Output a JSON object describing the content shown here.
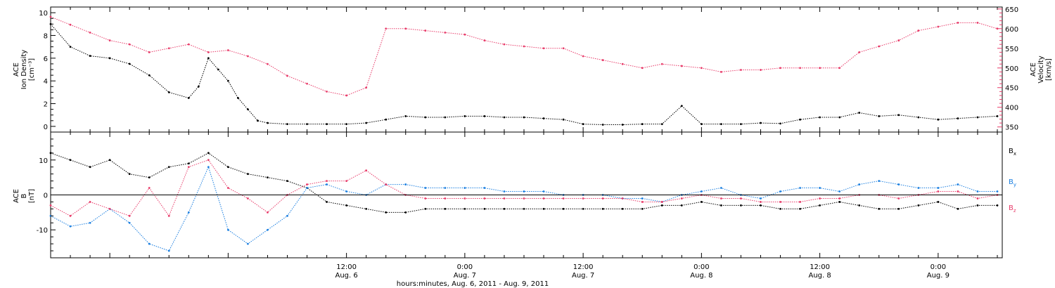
{
  "chart_data": [
    {
      "type": "scatter",
      "panel": "top",
      "xlabel": "hours:minutes, Aug. 6, 2011 - Aug. 9, 2011",
      "x_range_hours": [
        -18,
        78.5
      ],
      "y_left": {
        "label_lines": [
          "ACE",
          "Ion Density",
          "[cm⁻³]"
        ],
        "range": [
          -0.5,
          10.5
        ],
        "ticks": [
          0,
          2,
          4,
          6,
          8,
          10
        ]
      },
      "y_right": {
        "label_lines": [
          "ACE",
          "Velocity",
          "[km/s]"
        ],
        "range": [
          337,
          655
        ],
        "ticks": [
          350,
          400,
          450,
          500,
          550,
          600,
          650
        ],
        "color": "#e83c6a"
      },
      "series": [
        {
          "name": "Ion Density",
          "axis": "left",
          "color": "#000000",
          "x": [
            -18,
            -16,
            -14,
            -12,
            -10,
            -8,
            -6,
            -4,
            -3,
            -2,
            -1,
            0,
            1,
            2,
            3,
            4,
            6,
            8,
            10,
            12,
            14,
            16,
            18,
            20,
            22,
            24,
            26,
            28,
            30,
            32,
            34,
            36,
            38,
            40,
            42,
            44,
            46,
            48,
            50,
            52,
            54,
            56,
            58,
            60,
            62,
            64,
            66,
            68,
            70,
            72,
            74,
            76,
            78
          ],
          "y": [
            9.0,
            7.0,
            6.2,
            6.0,
            5.5,
            4.5,
            3.0,
            2.5,
            3.5,
            6.0,
            5.0,
            4.0,
            2.5,
            1.5,
            0.5,
            0.3,
            0.2,
            0.2,
            0.2,
            0.2,
            0.3,
            0.6,
            0.9,
            0.8,
            0.8,
            0.9,
            0.9,
            0.8,
            0.8,
            0.7,
            0.6,
            0.2,
            0.15,
            0.15,
            0.2,
            0.2,
            1.8,
            0.2,
            0.2,
            0.2,
            0.3,
            0.25,
            0.6,
            0.8,
            0.8,
            1.2,
            0.9,
            1.0,
            0.8,
            0.6,
            0.7,
            0.8,
            0.9
          ]
        },
        {
          "name": "Velocity",
          "axis": "right",
          "color": "#e83c6a",
          "x": [
            -18,
            -16,
            -14,
            -12,
            -10,
            -8,
            -6,
            -4,
            -2,
            0,
            2,
            4,
            6,
            8,
            10,
            12,
            14,
            16,
            18,
            20,
            22,
            24,
            26,
            28,
            30,
            32,
            34,
            36,
            38,
            40,
            42,
            44,
            46,
            48,
            50,
            52,
            54,
            56,
            58,
            60,
            62,
            64,
            66,
            68,
            70,
            72,
            74,
            76,
            78
          ],
          "y": [
            630,
            610,
            590,
            570,
            560,
            540,
            550,
            560,
            540,
            545,
            530,
            510,
            480,
            460,
            440,
            430,
            450,
            600,
            600,
            595,
            590,
            585,
            570,
            560,
            555,
            550,
            550,
            530,
            520,
            510,
            500,
            510,
            505,
            500,
            490,
            495,
            495,
            500,
            500,
            500,
            500,
            540,
            555,
            570,
            595,
            605,
            615,
            615,
            600
          ]
        }
      ]
    },
    {
      "type": "line",
      "panel": "bottom",
      "xlabel": "hours:minutes, Aug. 6, 2011 - Aug. 9, 2011",
      "x_range_hours": [
        -18,
        78.5
      ],
      "y": {
        "label_lines": [
          "ACE",
          "B",
          "[nT]"
        ],
        "range": [
          -18,
          18
        ],
        "ticks": [
          -10,
          0,
          10
        ]
      },
      "series": [
        {
          "name": "Bx",
          "color": "#000000",
          "x": [
            -18,
            -16,
            -14,
            -12,
            -10,
            -8,
            -6,
            -4,
            -2,
            0,
            2,
            4,
            6,
            8,
            10,
            12,
            14,
            16,
            18,
            20,
            22,
            24,
            26,
            28,
            30,
            32,
            34,
            36,
            38,
            40,
            42,
            44,
            46,
            48,
            50,
            52,
            54,
            56,
            58,
            60,
            62,
            64,
            66,
            68,
            70,
            72,
            74,
            76,
            78
          ],
          "y": [
            12,
            10,
            8,
            10,
            6,
            5,
            8,
            9,
            12,
            8,
            6,
            5,
            4,
            2,
            -2,
            -3,
            -4,
            -5,
            -5,
            -4,
            -4,
            -4,
            -4,
            -4,
            -4,
            -4,
            -4,
            -4,
            -4,
            -4,
            -4,
            -3,
            -3,
            -2,
            -3,
            -3,
            -3,
            -4,
            -4,
            -3,
            -2,
            -3,
            -4,
            -4,
            -3,
            -2,
            -4,
            -3,
            -3
          ]
        },
        {
          "name": "By",
          "color": "#1b7fe0",
          "x": [
            -18,
            -16,
            -14,
            -12,
            -10,
            -8,
            -6,
            -4,
            -2,
            0,
            2,
            4,
            6,
            8,
            10,
            12,
            14,
            16,
            18,
            20,
            22,
            24,
            26,
            28,
            30,
            32,
            34,
            36,
            38,
            40,
            42,
            44,
            46,
            48,
            50,
            52,
            54,
            56,
            58,
            60,
            62,
            64,
            66,
            68,
            70,
            72,
            74,
            76,
            78
          ],
          "y": [
            -6,
            -9,
            -8,
            -4,
            -8,
            -14,
            -16,
            -5,
            8,
            -10,
            -14,
            -10,
            -6,
            2,
            3,
            1,
            0,
            3,
            3,
            2,
            2,
            2,
            2,
            1,
            1,
            1,
            0,
            0,
            0,
            -1,
            -1,
            -2,
            0,
            1,
            2,
            0,
            -1,
            1,
            2,
            2,
            1,
            3,
            4,
            3,
            2,
            2,
            3,
            1,
            1
          ]
        },
        {
          "name": "Bz",
          "color": "#e83c6a",
          "x": [
            -18,
            -16,
            -14,
            -12,
            -10,
            -8,
            -6,
            -4,
            -2,
            0,
            2,
            4,
            6,
            8,
            10,
            12,
            14,
            16,
            18,
            20,
            22,
            24,
            26,
            28,
            30,
            32,
            34,
            36,
            38,
            40,
            42,
            44,
            46,
            48,
            50,
            52,
            54,
            56,
            58,
            60,
            62,
            64,
            66,
            68,
            70,
            72,
            74,
            76,
            78
          ],
          "y": [
            -3,
            -6,
            -2,
            -4,
            -6,
            2,
            -6,
            8,
            10,
            2,
            -1,
            -5,
            0,
            3,
            4,
            4,
            7,
            3,
            0,
            -1,
            -1,
            -1,
            -1,
            -1,
            -1,
            -1,
            -1,
            -1,
            -1,
            -1,
            -2,
            -2,
            -1,
            0,
            -1,
            -1,
            -2,
            -2,
            -2,
            -1,
            -1,
            0,
            0,
            -1,
            0,
            1,
            1,
            -1,
            0
          ]
        }
      ]
    }
  ],
  "labels": {
    "top_left_axis_lines": [
      "ACE",
      "Ion Density",
      "[cm⁻³]"
    ],
    "top_right_axis_lines": [
      "ACE",
      "Velocity",
      "[km/s]"
    ],
    "bottom_axis_lines": [
      "ACE",
      "B",
      "[nT]"
    ],
    "legend": {
      "bx": "B",
      "bx_sub": "x",
      "by": "B",
      "by_sub": "y",
      "bz": "B",
      "bz_sub": "z"
    },
    "xlabel": "hours:minutes, Aug.  6, 2011 - Aug.  9, 2011",
    "x_ticks": [
      {
        "time": "12:00",
        "date": "Aug. 6",
        "hour": 12
      },
      {
        "time": "0:00",
        "date": "Aug. 7",
        "hour": 24
      },
      {
        "time": "12:00",
        "date": "Aug. 7",
        "hour": 36
      },
      {
        "time": "0:00",
        "date": "Aug. 8",
        "hour": 48
      },
      {
        "time": "12:00",
        "date": "Aug. 8",
        "hour": 60
      },
      {
        "time": "0:00",
        "date": "Aug. 9",
        "hour": 72
      }
    ]
  },
  "colors": {
    "density": "#000000",
    "velocity": "#e83c6a",
    "bx": "#000000",
    "by": "#1b7fe0",
    "bz": "#e83c6a"
  }
}
